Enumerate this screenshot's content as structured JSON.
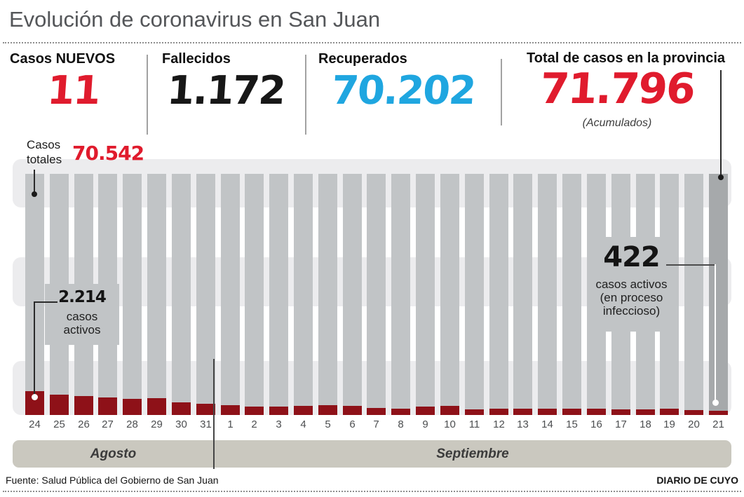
{
  "page": {
    "title": "Evolución de coronavirus en San Juan"
  },
  "colors": {
    "accent_red": "#e01b2d",
    "accent_blue": "#1fa6e0",
    "near_black": "#171717",
    "bar_gray": "#c1c4c6",
    "bar_gray_last": "#a6a9ab",
    "bar_maroon": "#8e1118",
    "band_light": "#ececee",
    "month_band": "#cac8bf"
  },
  "stats": [
    {
      "label": "Casos NUEVOS",
      "value": "11"
    },
    {
      "label": "Fallecidos",
      "value": "1.172"
    },
    {
      "label": "Recuperados",
      "value": "70.202"
    },
    {
      "label": "Total de casos en la provincia",
      "value": "71.796",
      "note": "(Acumulados)"
    }
  ],
  "callouts": {
    "totals": {
      "line1": "Casos",
      "line2": "totales",
      "value": "70.542"
    },
    "active_start": {
      "value": "2.214",
      "line1": "casos",
      "line2": "activos"
    },
    "active_end": {
      "value": "422",
      "line1": "casos activos",
      "line2": "(en proceso",
      "line3": "infeccioso)"
    }
  },
  "months": {
    "august": "Agosto",
    "september": "Septiembre"
  },
  "footer": {
    "source": "Fuente: Salud Pública del Gobierno de San Juan",
    "credit": "DIARIO DE CUYO"
  },
  "chart_data": {
    "type": "bar",
    "title": "Evolución de coronavirus en San Juan",
    "categories": [
      "24",
      "25",
      "26",
      "27",
      "28",
      "29",
      "30",
      "31",
      "1",
      "2",
      "3",
      "4",
      "5",
      "6",
      "7",
      "8",
      "9",
      "10",
      "11",
      "12",
      "13",
      "14",
      "15",
      "16",
      "17",
      "18",
      "19",
      "20",
      "21"
    ],
    "month_groups": [
      {
        "label": "Agosto",
        "count": 8
      },
      {
        "label": "Septiembre",
        "count": 21
      }
    ],
    "grid": "three light horizontal bands, no axis values",
    "legend_position": "none",
    "series": [
      {
        "name": "Casos totales",
        "color": "#c1c4c6",
        "rendering": "full-height gray bars (last bar darker)",
        "labeled_start_value": 70542,
        "labeled_end_value": 71796
      },
      {
        "name": "Casos activos (en proceso infeccioso)",
        "color": "#8e1118",
        "values_estimated": [
          2214,
          1890,
          1760,
          1630,
          1500,
          1560,
          1170,
          1040,
          910,
          780,
          780,
          845,
          910,
          845,
          650,
          585,
          780,
          845,
          520,
          585,
          585,
          585,
          585,
          585,
          520,
          520,
          585,
          455,
          422
        ],
        "labeled_start_value": 2214,
        "labeled_end_value": 422
      }
    ]
  }
}
